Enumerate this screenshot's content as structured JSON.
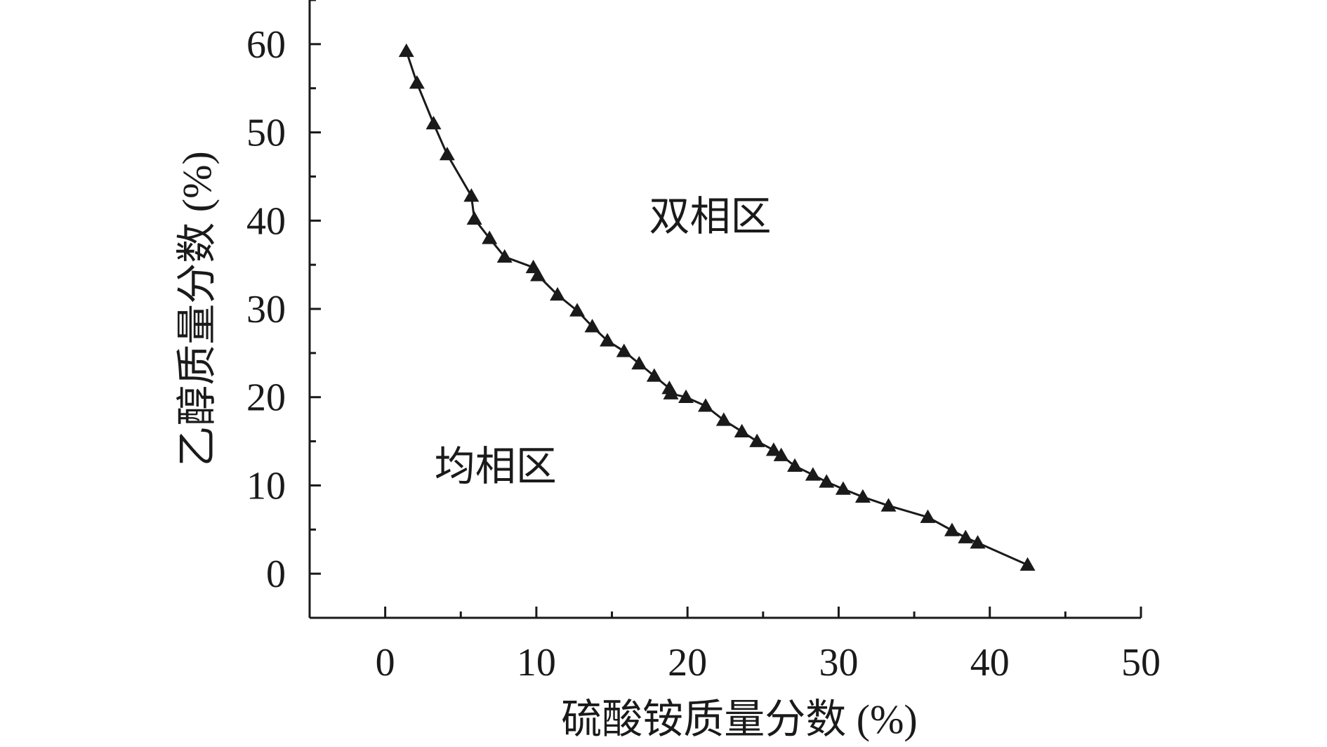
{
  "chart_data": {
    "type": "line",
    "xlabel": "硫酸铵质量分数 (%)",
    "ylabel": "乙醇质量分数 (%)",
    "xlim": [
      -5,
      50
    ],
    "ylim": [
      -5,
      65
    ],
    "xticks": [
      0,
      10,
      20,
      30,
      40,
      50
    ],
    "yticks": [
      0,
      10,
      20,
      30,
      40,
      50,
      60
    ],
    "marker": "triangle",
    "color": "#1a1a1a",
    "annotations": [
      {
        "text": "双相区",
        "x": 21.5,
        "y": 40.5
      },
      {
        "text": "均相区",
        "x": 7.3,
        "y": 12.2
      }
    ],
    "series": [
      {
        "x": [
          1.4,
          2.1,
          3.2,
          4.1,
          5.7,
          5.9,
          6.9,
          7.9,
          9.8,
          10.1,
          11.4,
          12.7,
          13.7,
          14.7,
          15.8,
          16.8,
          17.8,
          18.8,
          18.9,
          19.9,
          21.2,
          22.4,
          23.6,
          24.6,
          25.7,
          26.2,
          27.1,
          28.3,
          29.2,
          30.3,
          31.6,
          33.3,
          35.9,
          37.5,
          38.4,
          39.2,
          42.5
        ],
        "y": [
          59.2,
          55.6,
          51.0,
          47.5,
          42.8,
          40.2,
          38.0,
          35.9,
          34.7,
          33.8,
          31.6,
          29.8,
          28.0,
          26.4,
          25.2,
          23.8,
          22.4,
          21.0,
          20.4,
          20.0,
          19.0,
          17.4,
          16.1,
          15.0,
          14.0,
          13.4,
          12.2,
          11.2,
          10.4,
          9.6,
          8.7,
          7.7,
          6.4,
          4.9,
          4.1,
          3.5,
          1.0
        ]
      }
    ]
  }
}
